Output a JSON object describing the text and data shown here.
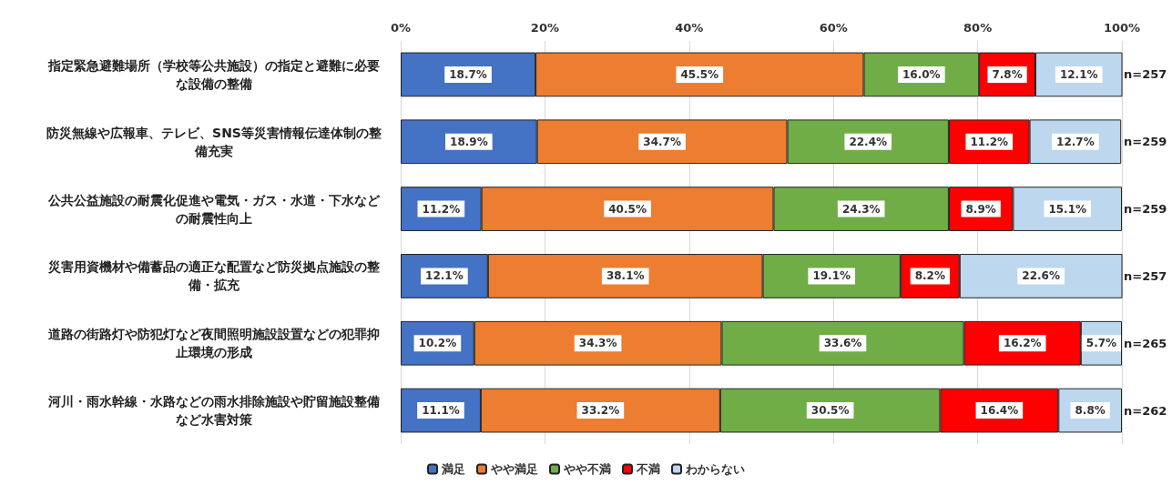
{
  "chart_data": {
    "type": "bar",
    "orientation": "horizontal",
    "stacked": true,
    "categories": [
      "指定緊急避難場所（学校等公共施設）の指定と避難に必要な設備の整備",
      "防災無線や広報車、テレビ、SNS等災害情報伝達体制の整備充実",
      "公共公益施設の耐震化促進や電気・ガス・水道・下水などの耐震性向上",
      "災害用資機材や備蓄品の適正な配置など防災拠点施設の整備・拡充",
      "道路の街路灯や防犯灯など夜間照明施設設置などの犯罪抑止環境の形成",
      "河川・雨水幹線・水路などの雨水排除施設や貯留施設整備など水害対策"
    ],
    "series": [
      {
        "name": "満足",
        "color": "#4472c4",
        "values": [
          18.7,
          18.9,
          11.2,
          12.1,
          10.2,
          11.1
        ],
        "value_labels": [
          "18.7%",
          "18.9%",
          "11.2%",
          "12.1%",
          "10.2%",
          "11.1%"
        ]
      },
      {
        "name": "やや満足",
        "color": "#ed7d31",
        "values": [
          45.5,
          34.7,
          40.5,
          38.1,
          34.3,
          33.2
        ],
        "value_labels": [
          "45.5%",
          "34.7%",
          "40.5%",
          "38.1%",
          "34.3%",
          "33.2%"
        ]
      },
      {
        "name": "やや不満",
        "color": "#70ad47",
        "values": [
          16.0,
          22.4,
          24.3,
          19.1,
          33.6,
          30.5
        ],
        "value_labels": [
          "16.0%",
          "22.4%",
          "24.3%",
          "19.1%",
          "33.6%",
          "30.5%"
        ]
      },
      {
        "name": "不満",
        "color": "#ff0000",
        "values": [
          7.8,
          11.2,
          8.9,
          8.2,
          16.2,
          16.4
        ],
        "value_labels": [
          "7.8%",
          "11.2%",
          "8.9%",
          "8.2%",
          "16.2%",
          "16.4%"
        ]
      },
      {
        "name": "わからない",
        "color": "#bdd7ee",
        "values": [
          12.1,
          12.7,
          15.1,
          22.6,
          5.7,
          8.8
        ],
        "value_labels": [
          "12.1%",
          "12.7%",
          "15.1%",
          "22.6%",
          "5.7%",
          "8.8%"
        ]
      }
    ],
    "xlim": [
      0,
      100
    ],
    "xticks": [
      {
        "value": 0,
        "label": "0%"
      },
      {
        "value": 20,
        "label": "20%"
      },
      {
        "value": 40,
        "label": "40%"
      },
      {
        "value": 60,
        "label": "60%"
      },
      {
        "value": 80,
        "label": "80%"
      },
      {
        "value": 100,
        "label": "100%"
      }
    ],
    "annotations": [
      "n=257",
      "n=259",
      "n=259",
      "n=257",
      "n=265",
      "n=262"
    ],
    "grid": "x",
    "legend": "bottom"
  }
}
